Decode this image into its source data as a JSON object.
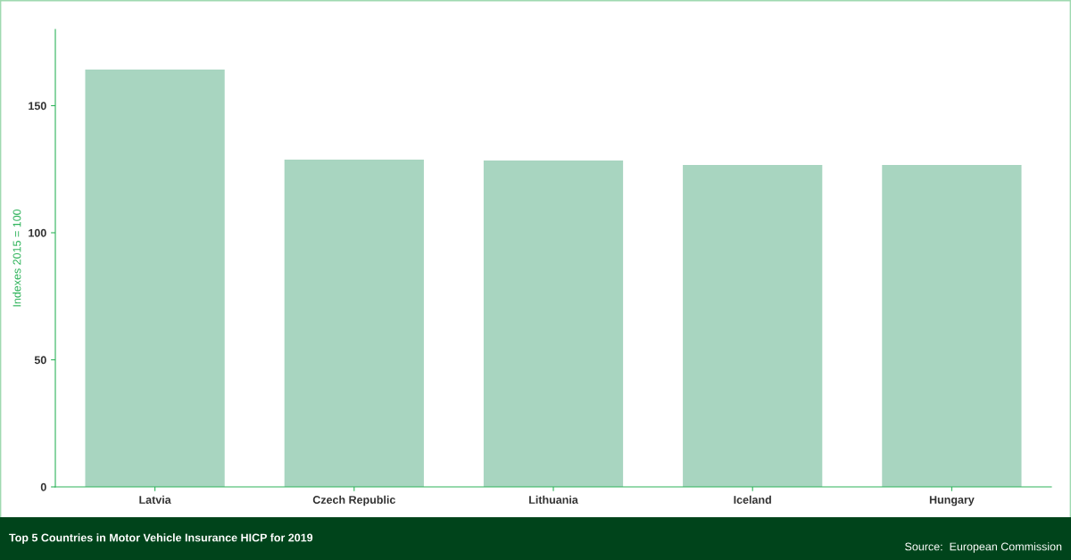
{
  "chart_data": {
    "type": "bar",
    "title": "Top 5 Countries in Motor Vehicle Insurance HICP for 2019",
    "ylabel": "Indexes 2015 = 100",
    "categories": [
      "Latvia",
      "Czech Republic",
      "Lithuania",
      "Iceland",
      "Hungary"
    ],
    "values": [
      164.2,
      128.8,
      128.4,
      126.7,
      126.7
    ],
    "color": "#a8d5c0",
    "ylim": [
      0,
      180
    ],
    "yticks": [
      0,
      50,
      100,
      150
    ],
    "grid": false,
    "legend": false,
    "annotations": [
      "Source:  European Commission"
    ]
  }
}
